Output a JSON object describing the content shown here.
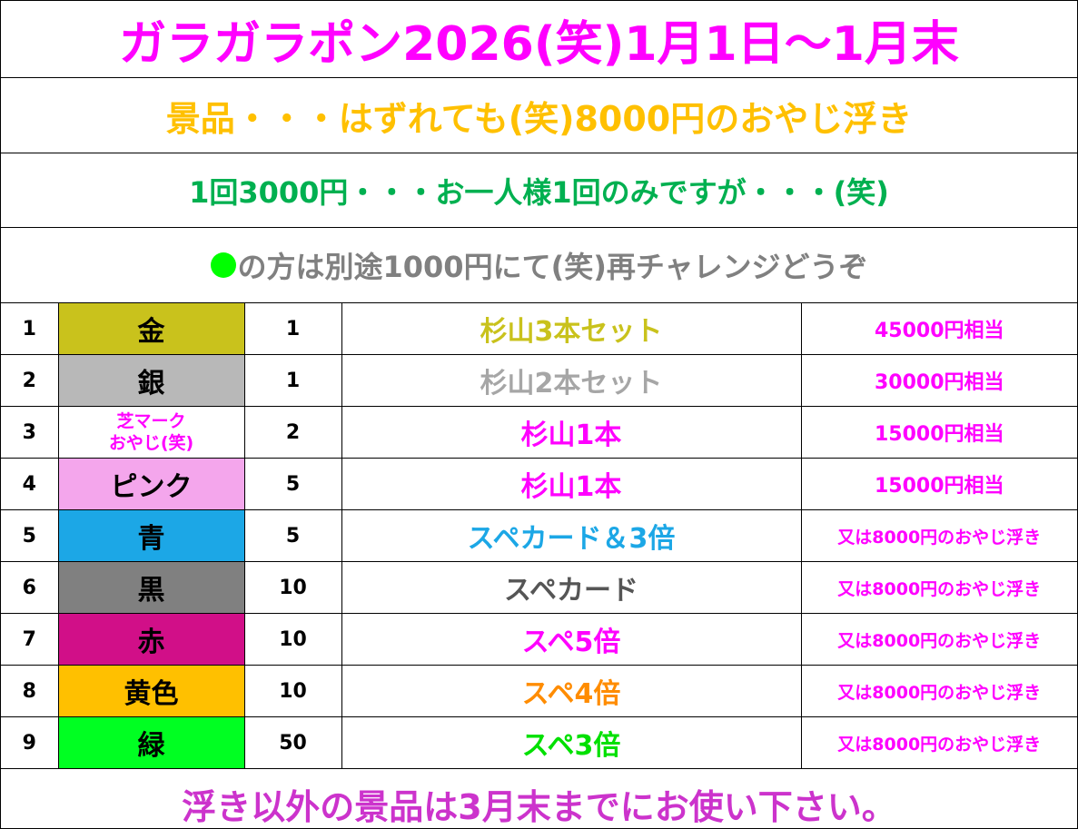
{
  "title": "ガラガラポン2026(笑)1月1日～1月末",
  "subtitle": "景品・・・はずれても(笑)8000円のおやじ浮き",
  "price_line": "1回3000円・・・お一人様1回のみですが・・・(笑)",
  "rechallenge": {
    "marker": "●",
    "text": "の方は別途1000円にて(笑)再チャレンジどうぞ"
  },
  "rows": [
    {
      "no": "1",
      "color_label": "金",
      "qty": "1",
      "prize": "杉山3本セット",
      "value": "45000円相当"
    },
    {
      "no": "2",
      "color_label": "銀",
      "qty": "1",
      "prize": "杉山2本セット",
      "value": "30000円相当"
    },
    {
      "no": "3",
      "color_label": "芝マーク",
      "color_label2": "おやじ(笑)",
      "qty": "2",
      "prize": "杉山1本",
      "value": "15000円相当"
    },
    {
      "no": "4",
      "color_label": "ピンク",
      "qty": "5",
      "prize": "杉山1本",
      "value": "15000円相当"
    },
    {
      "no": "5",
      "color_label": "青",
      "qty": "5",
      "prize": "スペカード＆3倍",
      "value": "又は8000円のおやじ浮き"
    },
    {
      "no": "6",
      "color_label": "黒",
      "qty": "10",
      "prize": "スペカード",
      "value": "又は8000円のおやじ浮き"
    },
    {
      "no": "7",
      "color_label": "赤",
      "qty": "10",
      "prize": "スペ5倍",
      "value": "又は8000円のおやじ浮き"
    },
    {
      "no": "8",
      "color_label": "黄色",
      "qty": "10",
      "prize": "スペ4倍",
      "value": "又は8000円のおやじ浮き"
    },
    {
      "no": "9",
      "color_label": "緑",
      "qty": "50",
      "prize": "スペ3倍",
      "value": "又は8000円のおやじ浮き"
    }
  ],
  "footer": "浮き以外の景品は3月末までにお使い下さい。",
  "colors": {
    "title": "#ff00ff",
    "subtitle": "#ffc000",
    "price_line": "#00b050",
    "rechallenge_text": "#808080",
    "marker": "#00ff00",
    "value": "#ff00ff",
    "footer": "#cc33cc",
    "swatches": [
      "#c9c21c",
      "#b8b8b8",
      "#ffffff",
      "#f4a6ec",
      "#1ca7e6",
      "#808080",
      "#d10f88",
      "#ffc000",
      "#00ff22"
    ],
    "prizes": [
      "#c9c21c",
      "#a6a6a6",
      "#ff00ff",
      "#ff00ff",
      "#1ca7e6",
      "#555555",
      "#ff00ff",
      "#ff8c00",
      "#00e000"
    ],
    "row3_label": "#ff00ff"
  }
}
